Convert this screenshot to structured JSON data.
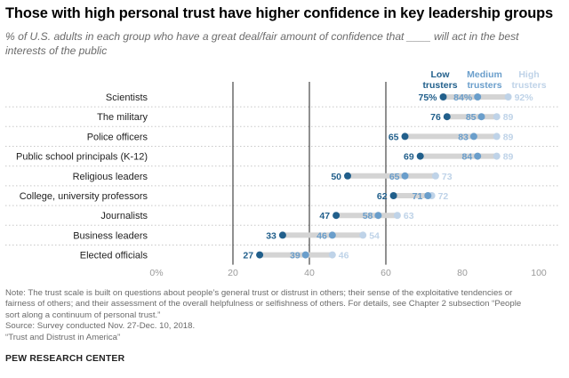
{
  "title": "Those with high personal trust have higher confidence in key leadership groups",
  "subtitle": "% of U.S. adults in each group who have a great deal/fair amount of confidence that ____ will act in the best interests of the public",
  "colors": {
    "low": "#215f8b",
    "medium": "#6a9ecb",
    "high": "#bfd3e8",
    "connector": "#d4d4d4",
    "gridline": "#222222",
    "row_separator": "#c8c8c8"
  },
  "chart_data": {
    "type": "dot-plot",
    "xlim": [
      0,
      100
    ],
    "xticks": [
      0,
      20,
      40,
      60,
      80,
      100
    ],
    "xtick_labels": [
      "0%",
      "20",
      "40",
      "60",
      "80",
      "100"
    ],
    "gridlines": [
      20,
      40,
      60
    ],
    "series": [
      {
        "key": "low",
        "name_line1": "Low",
        "name_line2": "trusters"
      },
      {
        "key": "medium",
        "name_line1": "Medium",
        "name_line2": "trusters"
      },
      {
        "key": "high",
        "name_line1": "High",
        "name_line2": "trusters"
      }
    ],
    "rows": [
      {
        "category": "Scientists",
        "low": 75,
        "medium": 84,
        "high": 92,
        "low_label": "75%",
        "medium_label": "84%",
        "high_label": "92%"
      },
      {
        "category": "The military",
        "low": 76,
        "medium": 85,
        "high": 89,
        "low_label": "76",
        "medium_label": "85",
        "high_label": "89"
      },
      {
        "category": "Police officers",
        "low": 65,
        "medium": 83,
        "high": 89,
        "low_label": "65",
        "medium_label": "83",
        "high_label": "89"
      },
      {
        "category": "Public school principals (K-12)",
        "low": 69,
        "medium": 84,
        "high": 89,
        "low_label": "69",
        "medium_label": "84",
        "high_label": "89"
      },
      {
        "category": "Religious leaders",
        "low": 50,
        "medium": 65,
        "high": 73,
        "low_label": "50",
        "medium_label": "65",
        "high_label": "73"
      },
      {
        "category": "College, university professors",
        "low": 62,
        "medium": 71,
        "high": 72,
        "low_label": "62",
        "medium_label": "71",
        "high_label": "72"
      },
      {
        "category": "Journalists",
        "low": 47,
        "medium": 58,
        "high": 63,
        "low_label": "47",
        "medium_label": "58",
        "high_label": "63"
      },
      {
        "category": "Business leaders",
        "low": 33,
        "medium": 46,
        "high": 54,
        "low_label": "33",
        "medium_label": "46",
        "high_label": "54"
      },
      {
        "category": "Elected officials",
        "low": 27,
        "medium": 39,
        "high": 46,
        "low_label": "27",
        "medium_label": "39",
        "high_label": "46"
      }
    ]
  },
  "note_lines": [
    "Note: The trust scale is built on questions about people’s general trust or distrust in others; their sense of the exploitative tendencies or",
    "fairness of others; and their assessment of the overall helpfulness or selfishness of others. For details, see Chapter 2 subsection “People",
    "sort along a continuum of personal trust.”",
    "Source: Survey conducted Nov. 27-Dec. 10, 2018.",
    "“Trust and Distrust in America”"
  ],
  "source_org": "PEW RESEARCH CENTER"
}
